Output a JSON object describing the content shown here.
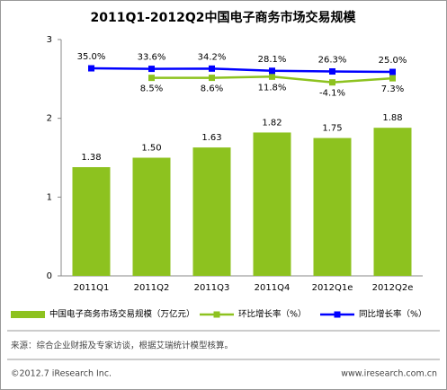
{
  "chart_data": {
    "type": "bar",
    "title": "2011Q1-2012Q2中国电子商务市场交易规模",
    "categories": [
      "2011Q1",
      "2011Q2",
      "2011Q3",
      "2011Q4",
      "2012Q1e",
      "2012Q2e"
    ],
    "series": [
      {
        "name": "中国电子商务市场交易规模（万亿元）",
        "type": "bar",
        "color": "#8dc21f",
        "values": [
          1.38,
          1.5,
          1.63,
          1.82,
          1.75,
          1.88
        ],
        "value_labels": [
          "1.38",
          "1.50",
          "1.63",
          "1.82",
          "1.75",
          "1.88"
        ]
      },
      {
        "name": "环比增长率（%）",
        "type": "line",
        "axis": "y2",
        "color": "#8dc21f",
        "label_side": "below",
        "values": [
          null,
          8.5,
          8.6,
          11.8,
          -4.1,
          7.3
        ],
        "value_labels": [
          null,
          "8.5%",
          "8.6%",
          "11.8%",
          "-4.1%",
          "7.3%"
        ]
      },
      {
        "name": "同比增长率（%）",
        "type": "line",
        "axis": "y2",
        "color": "#0000ff",
        "label_side": "above",
        "values": [
          35.0,
          33.6,
          34.2,
          28.1,
          26.3,
          25.0
        ],
        "value_labels": [
          "35.0%",
          "33.6%",
          "34.2%",
          "28.1%",
          "26.3%",
          "25.0%"
        ]
      }
    ],
    "ylim": [
      0,
      3
    ],
    "yticks": [
      0,
      1,
      2,
      3
    ],
    "y2lim": [
      -542,
      115
    ],
    "source": "来源：综合企业财报及专家访谈，根据艾瑞统计模型核算。",
    "copyright": "©2012.7 iResearch Inc.",
    "website": "www.iresearch.com.cn"
  }
}
